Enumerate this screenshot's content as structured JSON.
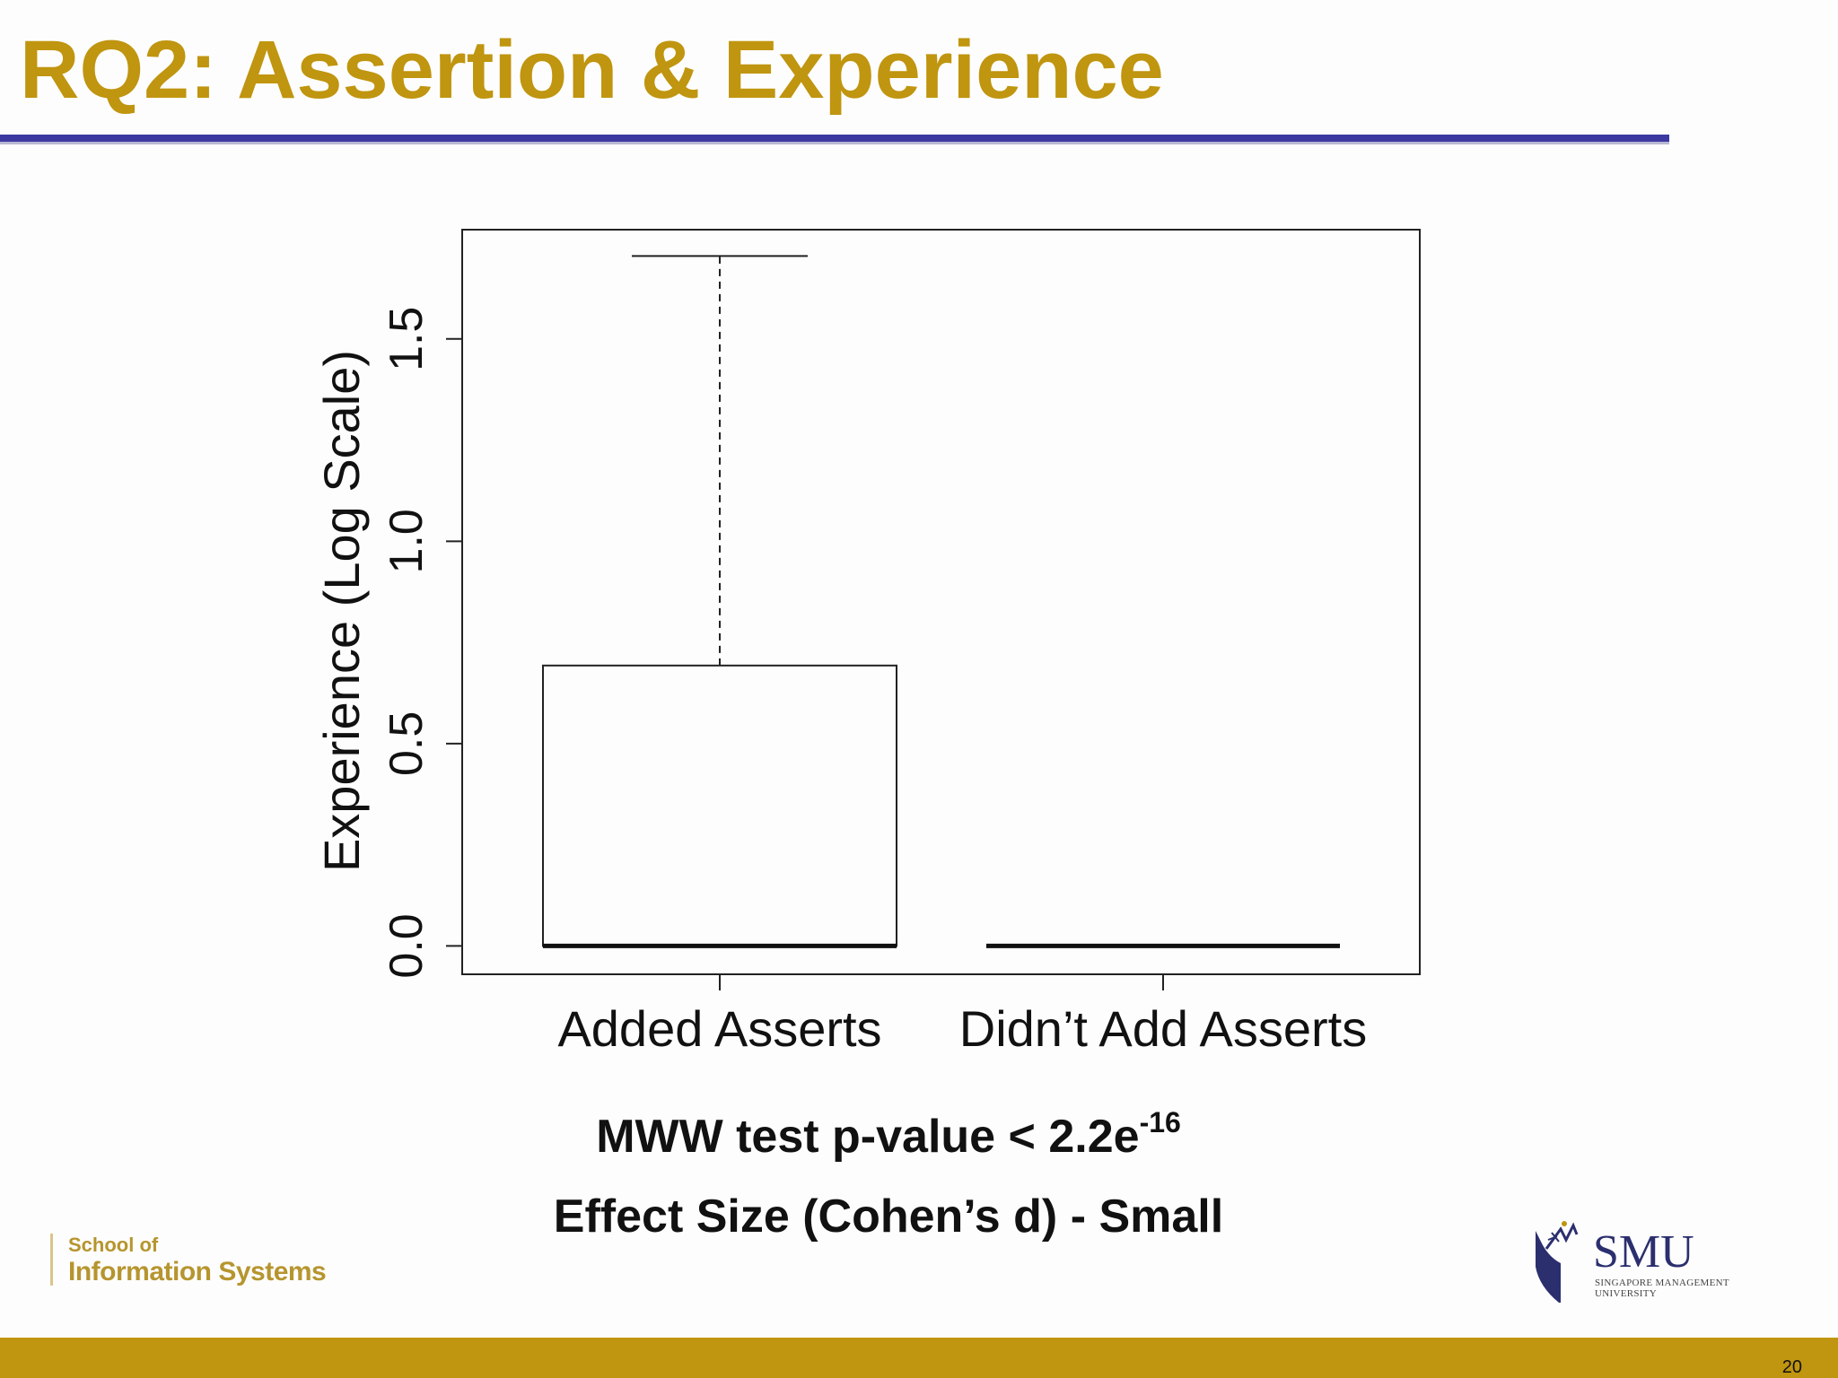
{
  "slide": {
    "title": "RQ2: Assertion & Experience",
    "stats": {
      "mww_text": "MWW test p-value < 2.2e",
      "mww_exponent": "-16",
      "effect_size": "Effect Size (Cohen’s d) - Small"
    },
    "school_logo": {
      "line1": "School of",
      "line2": "Information Systems"
    },
    "smu_logo": {
      "word": "SMU",
      "sub": "SINGAPORE MANAGEMENT UNIVERSITY",
      "icon": "smu-crest-icon"
    },
    "page_number": "20"
  },
  "colors": {
    "title": "#c0950f",
    "rule": "#3c3aa0",
    "footer": "#c0950f",
    "school_text": "#b6952e",
    "smu_navy": "#2b2f6e"
  },
  "chart_data": {
    "type": "boxplot",
    "ylabel": "Experience (Log Scale)",
    "xlabel": "",
    "ylim": [
      -0.07,
      1.77
    ],
    "yticks": [
      0.0,
      0.5,
      1.0,
      1.5
    ],
    "ytick_labels": [
      "0.0",
      "0.5",
      "1.0",
      "1.5"
    ],
    "categories": [
      "Added Asserts",
      "Didn’t Add Asserts"
    ],
    "boxes": [
      {
        "name": "Added Asserts",
        "whisker_low": 0.0,
        "q1": 0.0,
        "median": 0.0,
        "q3": 0.693,
        "whisker_high": 1.705
      },
      {
        "name": "Didn’t Add Asserts",
        "whisker_low": 0.0,
        "q1": 0.0,
        "median": 0.0,
        "q3": 0.0,
        "whisker_high": 0.0
      }
    ],
    "grid": false,
    "legend": "none"
  }
}
